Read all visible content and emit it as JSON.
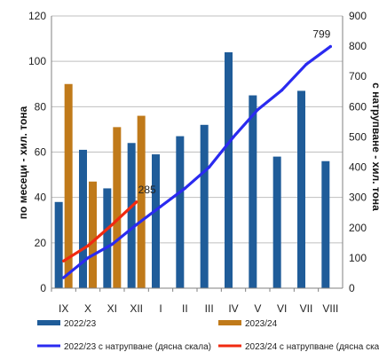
{
  "chart_data": {
    "type": "bar",
    "categories": [
      "IX",
      "X",
      "XI",
      "XII",
      "I",
      "II",
      "III",
      "IV",
      "V",
      "VI",
      "VII",
      "VIII"
    ],
    "left_axis": {
      "label": "по месеци - хил. тона",
      "range": [
        0,
        120
      ],
      "ticks": [
        0,
        20,
        40,
        60,
        80,
        100,
        120
      ]
    },
    "right_axis": {
      "label": "с натрупване - хил. тона",
      "range": [
        0,
        900
      ],
      "ticks": [
        0,
        100,
        200,
        300,
        400,
        500,
        600,
        700,
        800,
        900
      ]
    },
    "bar_series": [
      {
        "name": "2022/23",
        "color": "#1f5c99",
        "values": [
          38,
          61,
          44,
          64,
          59,
          67,
          72,
          104,
          85,
          58,
          87,
          56
        ]
      },
      {
        "name": "2023/24",
        "color": "#c07a1a",
        "values": [
          90,
          47,
          71,
          76,
          null,
          null,
          null,
          null,
          null,
          null,
          null,
          null
        ]
      }
    ],
    "line_series": [
      {
        "name": "2022/23 с натрупване (дясна скала)",
        "color": "#2a2af0",
        "axis": "right",
        "values": [
          35,
          100,
          145,
          210,
          270,
          330,
          400,
          500,
          590,
          655,
          740,
          799
        ]
      },
      {
        "name": "2023/24 с натрупване (дясна скала)",
        "color": "#f02a10",
        "axis": "right",
        "values": [
          90,
          140,
          210,
          285,
          null,
          null,
          null,
          null,
          null,
          null,
          null,
          null
        ]
      }
    ],
    "annotations": [
      {
        "text": "799",
        "series": 0,
        "index": 11
      },
      {
        "text": "285",
        "series": 1,
        "index": 3
      }
    ],
    "grid": true,
    "legend": "bottom"
  }
}
